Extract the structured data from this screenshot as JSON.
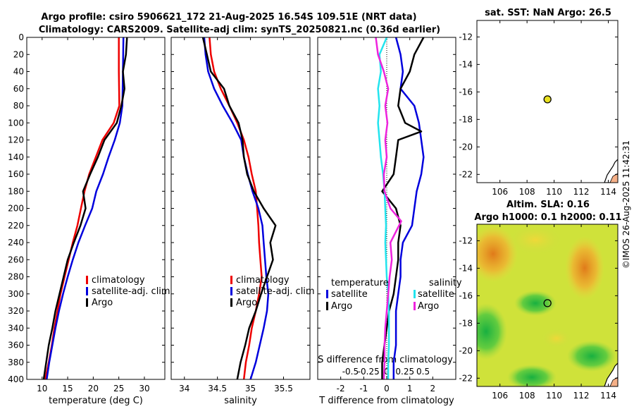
{
  "titles": {
    "line1": "Argo profile: csiro 5906621_172 21-Aug-2025 16.54S 109.51E (NRT data)",
    "line2": "Climatology: CARS2009. Satellite-adj clim: synTS_20250821.nc (0.36d earlier)",
    "sst": "sat. SST: NaN Argo: 26.5",
    "sla1": "Altim. SLA: 0.16",
    "sla2": "Argo h1000: 0.1 h2000: 0.11"
  },
  "footer": "©IMOS 26-Aug-2025 11:42:31",
  "colors": {
    "clim": "#ee0000",
    "sat": "#0000dd",
    "argo": "#000000",
    "sal_sat": "#22e4ee",
    "sal_argo": "#ee22dd"
  },
  "chart_data": [
    {
      "name": "temperature",
      "type": "line",
      "xlabel": "temperature (deg C)",
      "xlim": [
        7,
        34
      ],
      "ylim": [
        400,
        0
      ],
      "yticks": [
        0,
        20,
        40,
        60,
        80,
        100,
        120,
        140,
        160,
        180,
        200,
        220,
        240,
        260,
        280,
        300,
        320,
        340,
        360,
        380,
        400
      ],
      "xtick_labels": [
        "10",
        "15",
        "20",
        "25",
        "30"
      ],
      "xticks": [
        10,
        15,
        20,
        25,
        30
      ],
      "legend": [
        "climatology",
        "satellite-adj. clim",
        "Argo"
      ],
      "series": [
        {
          "name": "climatology",
          "color_key": "clim",
          "points": [
            [
              25.0,
              0
            ],
            [
              25.0,
              40
            ],
            [
              25.1,
              80
            ],
            [
              24.0,
              100
            ],
            [
              21.8,
              120
            ],
            [
              20.5,
              140
            ],
            [
              19.2,
              160
            ],
            [
              18.3,
              180
            ],
            [
              17.6,
              200
            ],
            [
              16.9,
              220
            ],
            [
              16.0,
              240
            ],
            [
              15.2,
              260
            ],
            [
              14.4,
              280
            ],
            [
              13.6,
              300
            ],
            [
              13.0,
              320
            ],
            [
              12.4,
              340
            ],
            [
              11.9,
              360
            ],
            [
              11.3,
              380
            ],
            [
              10.6,
              400
            ]
          ]
        },
        {
          "name": "satellite-adj. clim",
          "color_key": "sat",
          "points": [
            [
              25.9,
              0
            ],
            [
              25.8,
              40
            ],
            [
              25.7,
              80
            ],
            [
              25.2,
              100
            ],
            [
              24.2,
              120
            ],
            [
              23.0,
              140
            ],
            [
              21.9,
              160
            ],
            [
              20.6,
              180
            ],
            [
              19.8,
              200
            ],
            [
              18.4,
              220
            ],
            [
              17.1,
              240
            ],
            [
              16.0,
              260
            ],
            [
              15.0,
              280
            ],
            [
              14.1,
              300
            ],
            [
              13.3,
              320
            ],
            [
              12.6,
              340
            ],
            [
              12.0,
              360
            ],
            [
              11.4,
              380
            ],
            [
              10.9,
              400
            ]
          ]
        },
        {
          "name": "Argo",
          "color_key": "argo",
          "points": [
            [
              26.6,
              0
            ],
            [
              26.4,
              20
            ],
            [
              25.8,
              40
            ],
            [
              26.1,
              60
            ],
            [
              25.5,
              80
            ],
            [
              24.6,
              100
            ],
            [
              22.2,
              120
            ],
            [
              20.9,
              140
            ],
            [
              19.4,
              160
            ],
            [
              18.0,
              180
            ],
            [
              18.5,
              200
            ],
            [
              17.5,
              220
            ],
            [
              16.2,
              240
            ],
            [
              15.0,
              260
            ],
            [
              14.2,
              280
            ],
            [
              13.4,
              300
            ],
            [
              12.6,
              320
            ],
            [
              12.0,
              340
            ],
            [
              11.3,
              360
            ],
            [
              10.8,
              380
            ],
            [
              10.3,
              400
            ]
          ]
        }
      ]
    },
    {
      "name": "salinity",
      "type": "line",
      "xlabel": "salinity",
      "xlim": [
        33.8,
        35.9
      ],
      "ylim": [
        400,
        0
      ],
      "xtick_labels": [
        "34",
        "34.5",
        "35",
        "35.5"
      ],
      "xticks": [
        34,
        34.5,
        35,
        35.5
      ],
      "legend": [
        "climatology",
        "satellite-adj. clim",
        "Argo"
      ],
      "series": [
        {
          "name": "climatology",
          "color_key": "clim",
          "points": [
            [
              34.38,
              0
            ],
            [
              34.4,
              20
            ],
            [
              34.45,
              40
            ],
            [
              34.55,
              60
            ],
            [
              34.68,
              80
            ],
            [
              34.8,
              100
            ],
            [
              34.9,
              120
            ],
            [
              34.97,
              140
            ],
            [
              35.02,
              160
            ],
            [
              35.08,
              180
            ],
            [
              35.1,
              200
            ],
            [
              35.12,
              220
            ],
            [
              35.13,
              240
            ],
            [
              35.15,
              260
            ],
            [
              35.17,
              280
            ],
            [
              35.13,
              300
            ],
            [
              35.08,
              320
            ],
            [
              35.02,
              340
            ],
            [
              34.98,
              360
            ],
            [
              34.93,
              380
            ],
            [
              34.9,
              400
            ]
          ]
        },
        {
          "name": "satellite-adj. clim",
          "color_key": "sat",
          "points": [
            [
              34.3,
              0
            ],
            [
              34.32,
              20
            ],
            [
              34.36,
              40
            ],
            [
              34.45,
              60
            ],
            [
              34.58,
              80
            ],
            [
              34.73,
              100
            ],
            [
              34.86,
              120
            ],
            [
              34.9,
              140
            ],
            [
              34.96,
              160
            ],
            [
              35.03,
              180
            ],
            [
              35.12,
              200
            ],
            [
              35.18,
              220
            ],
            [
              35.2,
              240
            ],
            [
              35.22,
              260
            ],
            [
              35.24,
              280
            ],
            [
              35.27,
              300
            ],
            [
              35.25,
              320
            ],
            [
              35.2,
              340
            ],
            [
              35.14,
              360
            ],
            [
              35.08,
              380
            ],
            [
              35.0,
              400
            ]
          ]
        },
        {
          "name": "Argo",
          "color_key": "argo",
          "points": [
            [
              34.28,
              0
            ],
            [
              34.34,
              20
            ],
            [
              34.4,
              40
            ],
            [
              34.6,
              60
            ],
            [
              34.68,
              80
            ],
            [
              34.82,
              100
            ],
            [
              34.88,
              120
            ],
            [
              34.9,
              140
            ],
            [
              34.95,
              160
            ],
            [
              35.05,
              180
            ],
            [
              35.2,
              200
            ],
            [
              35.38,
              220
            ],
            [
              35.3,
              240
            ],
            [
              35.34,
              260
            ],
            [
              35.25,
              280
            ],
            [
              35.16,
              300
            ],
            [
              35.08,
              320
            ],
            [
              34.98,
              340
            ],
            [
              34.92,
              360
            ],
            [
              34.85,
              380
            ],
            [
              34.8,
              400
            ]
          ]
        }
      ]
    },
    {
      "name": "differences",
      "type": "line",
      "xlabel": "T difference from climatology",
      "xlabel_top": "S difference from climatology",
      "xlim": [
        -3,
        3
      ],
      "slim": [
        -0.95,
        0.95
      ],
      "ylim": [
        400,
        0
      ],
      "xtick_labels": [
        "-2",
        "-1",
        "0",
        "1",
        "2"
      ],
      "xticks": [
        -2,
        -1,
        0,
        1,
        2
      ],
      "stick_labels": [
        "-0.5",
        "-0.25",
        "0",
        "0.25",
        "0.5"
      ],
      "sticks": [
        -0.5,
        -0.25,
        0,
        0.25,
        0.5
      ],
      "legend_headers": [
        "temperature",
        "salinity"
      ],
      "legend_left": [
        "satellite",
        "Argo"
      ],
      "legend_right": [
        "satellite",
        "Argo"
      ],
      "series": [
        {
          "name": "T satellite",
          "color_key": "sat",
          "axis": "T",
          "points": [
            [
              0.4,
              0
            ],
            [
              0.6,
              20
            ],
            [
              0.7,
              40
            ],
            [
              0.6,
              60
            ],
            [
              1.2,
              80
            ],
            [
              1.4,
              100
            ],
            [
              1.5,
              120
            ],
            [
              1.6,
              140
            ],
            [
              1.5,
              160
            ],
            [
              1.3,
              180
            ],
            [
              1.2,
              200
            ],
            [
              1.1,
              220
            ],
            [
              0.7,
              240
            ],
            [
              0.6,
              260
            ],
            [
              0.6,
              280
            ],
            [
              0.5,
              300
            ],
            [
              0.4,
              320
            ],
            [
              0.4,
              340
            ],
            [
              0.4,
              360
            ],
            [
              0.3,
              380
            ],
            [
              0.3,
              400
            ]
          ]
        },
        {
          "name": "T Argo",
          "color_key": "argo",
          "axis": "T",
          "points": [
            [
              1.6,
              0
            ],
            [
              1.2,
              20
            ],
            [
              1.0,
              40
            ],
            [
              0.6,
              60
            ],
            [
              0.5,
              80
            ],
            [
              0.8,
              100
            ],
            [
              1.5,
              110
            ],
            [
              0.5,
              120
            ],
            [
              0.4,
              140
            ],
            [
              0.3,
              160
            ],
            [
              -0.2,
              180
            ],
            [
              0.4,
              200
            ],
            [
              0.6,
              220
            ],
            [
              0.5,
              240
            ],
            [
              0.5,
              260
            ],
            [
              0.4,
              280
            ],
            [
              0.3,
              300
            ],
            [
              0.1,
              320
            ],
            [
              0.0,
              340
            ],
            [
              -0.1,
              360
            ],
            [
              -0.2,
              380
            ],
            [
              -0.2,
              400
            ]
          ]
        },
        {
          "name": "S satellite",
          "color_key": "sal_sat",
          "axis": "S",
          "points": [
            [
              0.0,
              0
            ],
            [
              -0.1,
              20
            ],
            [
              -0.08,
              40
            ],
            [
              -0.12,
              60
            ],
            [
              -0.1,
              80
            ],
            [
              -0.12,
              100
            ],
            [
              -0.1,
              120
            ],
            [
              -0.08,
              140
            ],
            [
              -0.05,
              160
            ],
            [
              -0.03,
              180
            ],
            [
              -0.02,
              200
            ],
            [
              -0.01,
              220
            ],
            [
              -0.02,
              240
            ],
            [
              -0.01,
              260
            ],
            [
              0.0,
              280
            ],
            [
              0.02,
              300
            ],
            [
              0.03,
              320
            ],
            [
              0.03,
              340
            ],
            [
              0.03,
              360
            ],
            [
              0.02,
              380
            ],
            [
              0.02,
              400
            ]
          ]
        },
        {
          "name": "S Argo",
          "color_key": "sal_argo",
          "axis": "S",
          "points": [
            [
              -0.15,
              0
            ],
            [
              -0.12,
              20
            ],
            [
              -0.04,
              40
            ],
            [
              0.02,
              60
            ],
            [
              -0.02,
              80
            ],
            [
              0.01,
              100
            ],
            [
              -0.02,
              120
            ],
            [
              0.0,
              140
            ],
            [
              -0.04,
              160
            ],
            [
              -0.03,
              180
            ],
            [
              0.05,
              200
            ],
            [
              0.2,
              215
            ],
            [
              0.05,
              240
            ],
            [
              0.07,
              260
            ],
            [
              0.04,
              280
            ],
            [
              0.02,
              300
            ],
            [
              0.0,
              320
            ],
            [
              -0.02,
              340
            ],
            [
              -0.03,
              360
            ],
            [
              -0.03,
              380
            ],
            [
              -0.04,
              400
            ]
          ]
        }
      ]
    },
    {
      "name": "sst_map",
      "type": "scatter",
      "title": "sat. SST: NaN Argo: 26.5",
      "xlim": [
        104.3,
        114.7
      ],
      "ylim": [
        -22.6,
        -10.8
      ],
      "xtick_labels": [
        "106",
        "108",
        "110",
        "112",
        "114"
      ],
      "xticks": [
        106,
        108,
        110,
        112,
        114
      ],
      "ytick_labels": [
        "-12",
        "-14",
        "-16",
        "-18",
        "-20",
        "-22"
      ],
      "yticks": [
        -12,
        -14,
        -16,
        -18,
        -20,
        -22
      ],
      "argo_position": [
        109.51,
        -16.54
      ]
    },
    {
      "name": "sla_map",
      "type": "heatmap",
      "title": "Altim. SLA: 0.16",
      "xlim": [
        104.3,
        114.7
      ],
      "ylim": [
        -22.6,
        -10.8
      ],
      "xtick_labels": [
        "106",
        "108",
        "110",
        "112",
        "114"
      ],
      "xticks": [
        106,
        108,
        110,
        112,
        114
      ],
      "ytick_labels": [
        "-12",
        "-14",
        "-16",
        "-18",
        "-20",
        "-22"
      ],
      "yticks": [
        -12,
        -14,
        -16,
        -18,
        -20,
        -22
      ],
      "argo_position": [
        109.51,
        -16.54
      ]
    }
  ]
}
